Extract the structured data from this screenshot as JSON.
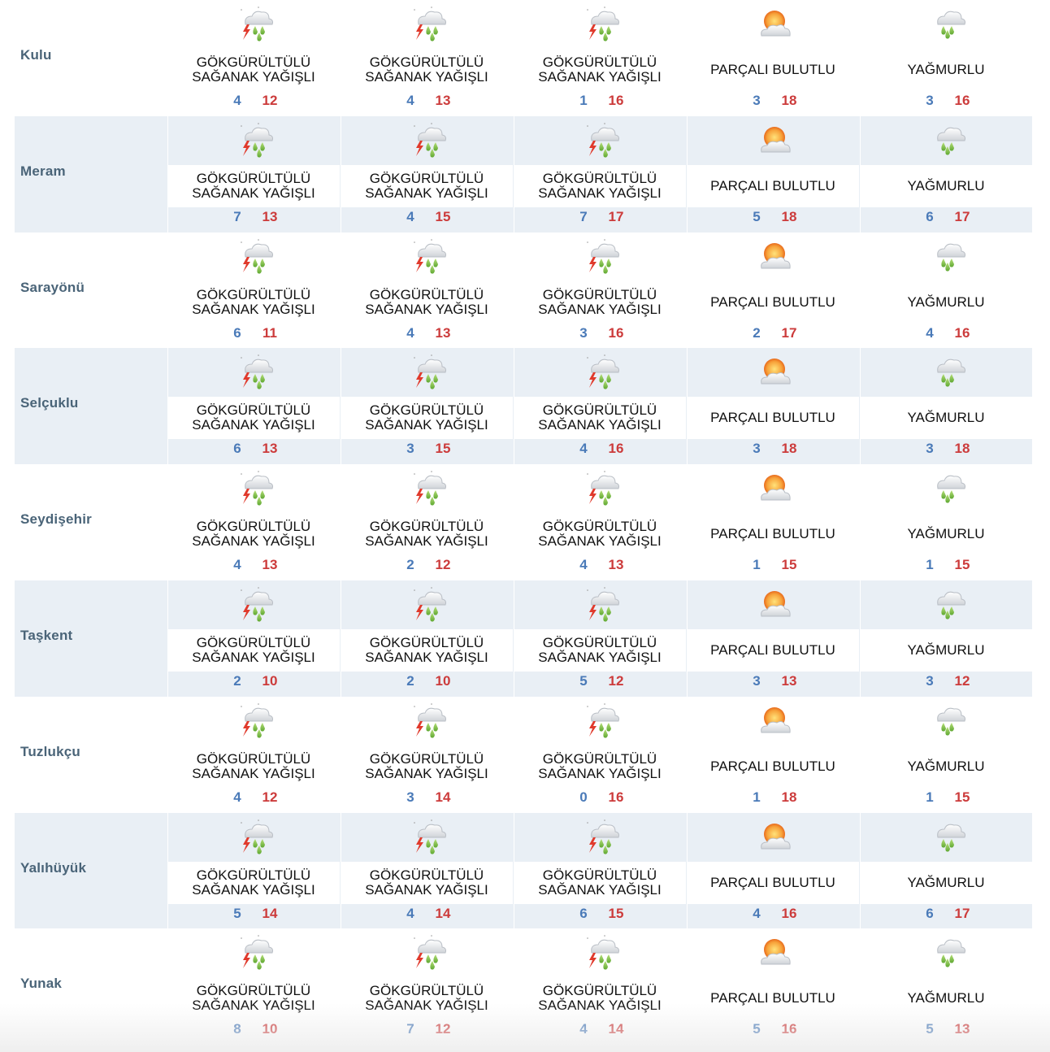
{
  "colors": {
    "city_text": "#4a6478",
    "stripe_bg": "#e9eff5",
    "min_temp": "#4a7ab8",
    "max_temp": "#cc3b3b"
  },
  "rows": [
    {
      "city": "Kulu",
      "days": [
        {
          "icon": "thunderstorm-rain-icon",
          "condition": "GÖKGÜRÜLTÜLÜ SAĞANAK YAĞIŞLI",
          "min": "4",
          "max": "12"
        },
        {
          "icon": "thunderstorm-rain-icon",
          "condition": "GÖKGÜRÜLTÜLÜ SAĞANAK YAĞIŞLI",
          "min": "4",
          "max": "13"
        },
        {
          "icon": "thunderstorm-rain-icon",
          "condition": "GÖKGÜRÜLTÜLÜ SAĞANAK YAĞIŞLI",
          "min": "1",
          "max": "16"
        },
        {
          "icon": "partly-cloudy-icon",
          "condition": "PARÇALI BULUTLU",
          "min": "3",
          "max": "18"
        },
        {
          "icon": "rain-icon",
          "condition": "YAĞMURLU",
          "min": "3",
          "max": "16"
        }
      ]
    },
    {
      "city": "Meram",
      "days": [
        {
          "icon": "thunderstorm-rain-icon",
          "condition": "GÖKGÜRÜLTÜLÜ SAĞANAK YAĞIŞLI",
          "min": "7",
          "max": "13"
        },
        {
          "icon": "thunderstorm-rain-icon",
          "condition": "GÖKGÜRÜLTÜLÜ SAĞANAK YAĞIŞLI",
          "min": "4",
          "max": "15"
        },
        {
          "icon": "thunderstorm-rain-icon",
          "condition": "GÖKGÜRÜLTÜLÜ SAĞANAK YAĞIŞLI",
          "min": "7",
          "max": "17"
        },
        {
          "icon": "partly-cloudy-icon",
          "condition": "PARÇALI BULUTLU",
          "min": "5",
          "max": "18"
        },
        {
          "icon": "rain-icon",
          "condition": "YAĞMURLU",
          "min": "6",
          "max": "17"
        }
      ]
    },
    {
      "city": "Sarayönü",
      "days": [
        {
          "icon": "thunderstorm-rain-icon",
          "condition": "GÖKGÜRÜLTÜLÜ SAĞANAK YAĞIŞLI",
          "min": "6",
          "max": "11"
        },
        {
          "icon": "thunderstorm-rain-icon",
          "condition": "GÖKGÜRÜLTÜLÜ SAĞANAK YAĞIŞLI",
          "min": "4",
          "max": "13"
        },
        {
          "icon": "thunderstorm-rain-icon",
          "condition": "GÖKGÜRÜLTÜLÜ SAĞANAK YAĞIŞLI",
          "min": "3",
          "max": "16"
        },
        {
          "icon": "partly-cloudy-icon",
          "condition": "PARÇALI BULUTLU",
          "min": "2",
          "max": "17"
        },
        {
          "icon": "rain-icon",
          "condition": "YAĞMURLU",
          "min": "4",
          "max": "16"
        }
      ]
    },
    {
      "city": "Selçuklu",
      "days": [
        {
          "icon": "thunderstorm-rain-icon",
          "condition": "GÖKGÜRÜLTÜLÜ SAĞANAK YAĞIŞLI",
          "min": "6",
          "max": "13"
        },
        {
          "icon": "thunderstorm-rain-icon",
          "condition": "GÖKGÜRÜLTÜLÜ SAĞANAK YAĞIŞLI",
          "min": "3",
          "max": "15"
        },
        {
          "icon": "thunderstorm-rain-icon",
          "condition": "GÖKGÜRÜLTÜLÜ SAĞANAK YAĞIŞLI",
          "min": "4",
          "max": "16"
        },
        {
          "icon": "partly-cloudy-icon",
          "condition": "PARÇALI BULUTLU",
          "min": "3",
          "max": "18"
        },
        {
          "icon": "rain-icon",
          "condition": "YAĞMURLU",
          "min": "3",
          "max": "18"
        }
      ]
    },
    {
      "city": "Seydişehir",
      "days": [
        {
          "icon": "thunderstorm-rain-icon",
          "condition": "GÖKGÜRÜLTÜLÜ SAĞANAK YAĞIŞLI",
          "min": "4",
          "max": "13"
        },
        {
          "icon": "thunderstorm-rain-icon",
          "condition": "GÖKGÜRÜLTÜLÜ SAĞANAK YAĞIŞLI",
          "min": "2",
          "max": "12"
        },
        {
          "icon": "thunderstorm-rain-icon",
          "condition": "GÖKGÜRÜLTÜLÜ SAĞANAK YAĞIŞLI",
          "min": "4",
          "max": "13"
        },
        {
          "icon": "partly-cloudy-icon",
          "condition": "PARÇALI BULUTLU",
          "min": "1",
          "max": "15"
        },
        {
          "icon": "rain-icon",
          "condition": "YAĞMURLU",
          "min": "1",
          "max": "15"
        }
      ]
    },
    {
      "city": "Taşkent",
      "days": [
        {
          "icon": "thunderstorm-rain-icon",
          "condition": "GÖKGÜRÜLTÜLÜ SAĞANAK YAĞIŞLI",
          "min": "2",
          "max": "10"
        },
        {
          "icon": "thunderstorm-rain-icon",
          "condition": "GÖKGÜRÜLTÜLÜ SAĞANAK YAĞIŞLI",
          "min": "2",
          "max": "10"
        },
        {
          "icon": "thunderstorm-rain-icon",
          "condition": "GÖKGÜRÜLTÜLÜ SAĞANAK YAĞIŞLI",
          "min": "5",
          "max": "12"
        },
        {
          "icon": "partly-cloudy-icon",
          "condition": "PARÇALI BULUTLU",
          "min": "3",
          "max": "13"
        },
        {
          "icon": "rain-icon",
          "condition": "YAĞMURLU",
          "min": "3",
          "max": "12"
        }
      ]
    },
    {
      "city": "Tuzlukçu",
      "days": [
        {
          "icon": "thunderstorm-rain-icon",
          "condition": "GÖKGÜRÜLTÜLÜ SAĞANAK YAĞIŞLI",
          "min": "4",
          "max": "12"
        },
        {
          "icon": "thunderstorm-rain-icon",
          "condition": "GÖKGÜRÜLTÜLÜ SAĞANAK YAĞIŞLI",
          "min": "3",
          "max": "14"
        },
        {
          "icon": "thunderstorm-rain-icon",
          "condition": "GÖKGÜRÜLTÜLÜ SAĞANAK YAĞIŞLI",
          "min": "0",
          "max": "16"
        },
        {
          "icon": "partly-cloudy-icon",
          "condition": "PARÇALI BULUTLU",
          "min": "1",
          "max": "18"
        },
        {
          "icon": "rain-icon",
          "condition": "YAĞMURLU",
          "min": "1",
          "max": "15"
        }
      ]
    },
    {
      "city": "Yalıhüyük",
      "days": [
        {
          "icon": "thunderstorm-rain-icon",
          "condition": "GÖKGÜRÜLTÜLÜ SAĞANAK YAĞIŞLI",
          "min": "5",
          "max": "14"
        },
        {
          "icon": "thunderstorm-rain-icon",
          "condition": "GÖKGÜRÜLTÜLÜ SAĞANAK YAĞIŞLI",
          "min": "4",
          "max": "14"
        },
        {
          "icon": "thunderstorm-rain-icon",
          "condition": "GÖKGÜRÜLTÜLÜ SAĞANAK YAĞIŞLI",
          "min": "6",
          "max": "15"
        },
        {
          "icon": "partly-cloudy-icon",
          "condition": "PARÇALI BULUTLU",
          "min": "4",
          "max": "16"
        },
        {
          "icon": "rain-icon",
          "condition": "YAĞMURLU",
          "min": "6",
          "max": "17"
        }
      ]
    },
    {
      "city": "Yunak",
      "days": [
        {
          "icon": "thunderstorm-rain-icon",
          "condition": "GÖKGÜRÜLTÜLÜ SAĞANAK YAĞIŞLI",
          "min": "8",
          "max": "10"
        },
        {
          "icon": "thunderstorm-rain-icon",
          "condition": "GÖKGÜRÜLTÜLÜ SAĞANAK YAĞIŞLI",
          "min": "7",
          "max": "12"
        },
        {
          "icon": "thunderstorm-rain-icon",
          "condition": "GÖKGÜRÜLTÜLÜ SAĞANAK YAĞIŞLI",
          "min": "4",
          "max": "14"
        },
        {
          "icon": "partly-cloudy-icon",
          "condition": "PARÇALI BULUTLU",
          "min": "5",
          "max": "16"
        },
        {
          "icon": "rain-icon",
          "condition": "YAĞMURLU",
          "min": "5",
          "max": "13"
        }
      ]
    }
  ]
}
